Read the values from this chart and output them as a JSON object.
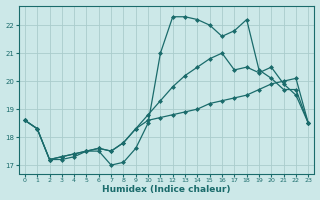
{
  "xlabel": "Humidex (Indice chaleur)",
  "bg_color": "#cce8e8",
  "grid_color": "#aacccc",
  "line_color": "#1a6b6b",
  "xlim": [
    -0.5,
    23.5
  ],
  "ylim": [
    16.7,
    22.7
  ],
  "yticks": [
    17,
    18,
    19,
    20,
    21,
    22
  ],
  "xticks": [
    0,
    1,
    2,
    3,
    4,
    5,
    6,
    7,
    8,
    9,
    10,
    11,
    12,
    13,
    14,
    15,
    16,
    17,
    18,
    19,
    20,
    21,
    22,
    23
  ],
  "series1_x": [
    0,
    1,
    2,
    3,
    4,
    5,
    6,
    7,
    8,
    9,
    10,
    11,
    12,
    13,
    14,
    15,
    16,
    17,
    18,
    19,
    20,
    21,
    22,
    23
  ],
  "series1_y": [
    18.6,
    18.3,
    17.2,
    17.2,
    17.3,
    17.5,
    17.5,
    17.0,
    17.1,
    17.6,
    18.5,
    21.0,
    22.3,
    22.3,
    22.2,
    22.0,
    21.6,
    21.8,
    22.2,
    20.4,
    20.1,
    19.7,
    19.7,
    18.5
  ],
  "series2_x": [
    0,
    1,
    2,
    3,
    4,
    5,
    6,
    7,
    8,
    9,
    10,
    11,
    12,
    13,
    14,
    15,
    16,
    17,
    18,
    19,
    20,
    21,
    22,
    23
  ],
  "series2_y": [
    18.6,
    18.3,
    17.2,
    17.3,
    17.4,
    17.5,
    17.6,
    17.5,
    17.8,
    18.3,
    18.8,
    19.3,
    19.8,
    20.2,
    20.5,
    20.8,
    21.0,
    20.4,
    20.5,
    20.3,
    20.5,
    19.9,
    19.5,
    18.5
  ],
  "series3_x": [
    0,
    1,
    2,
    3,
    4,
    5,
    6,
    7,
    8,
    9,
    10,
    11,
    12,
    13,
    14,
    15,
    16,
    17,
    18,
    19,
    20,
    21,
    22,
    23
  ],
  "series3_y": [
    18.6,
    18.3,
    17.2,
    17.3,
    17.4,
    17.5,
    17.6,
    17.5,
    17.8,
    18.3,
    18.6,
    18.7,
    18.8,
    18.9,
    19.0,
    19.2,
    19.3,
    19.4,
    19.5,
    19.7,
    19.9,
    20.0,
    20.1,
    18.5
  ]
}
